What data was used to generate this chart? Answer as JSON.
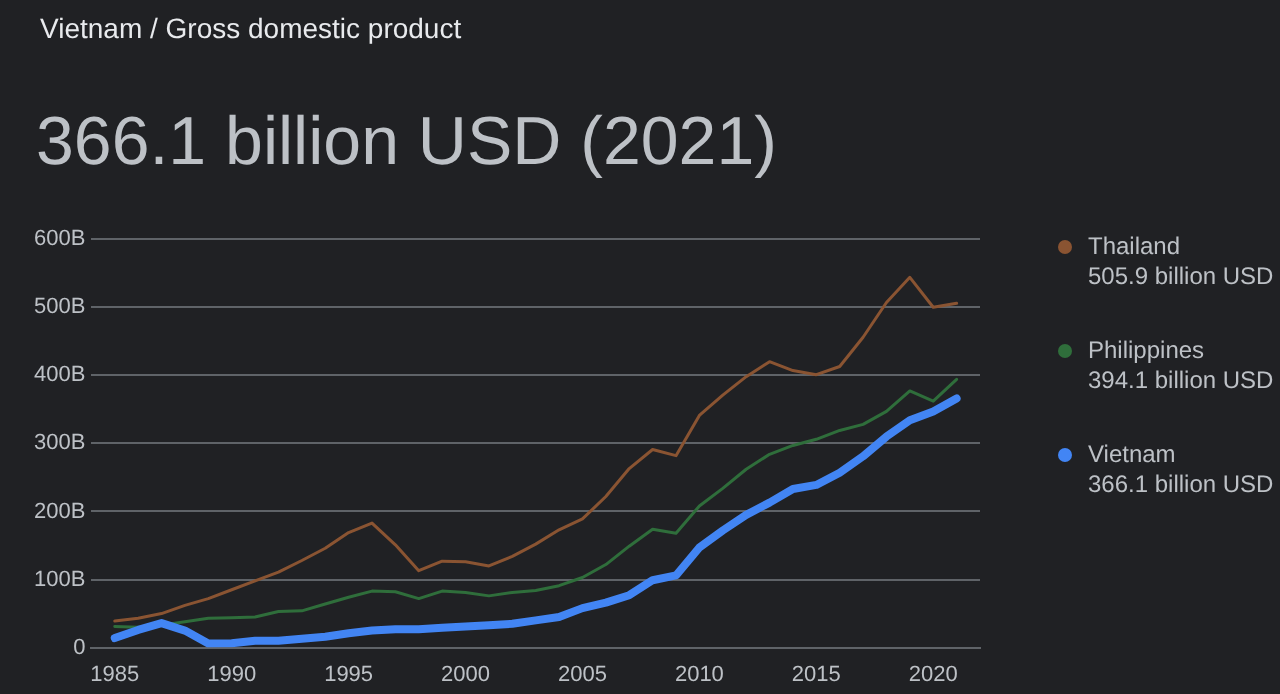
{
  "chart_data": {
    "type": "line",
    "subtitle": "Vietnam / Gross domestic product",
    "title": "366.1 billion USD (2021)",
    "x": [
      1985,
      1986,
      1987,
      1988,
      1989,
      1990,
      1991,
      1992,
      1993,
      1994,
      1995,
      1996,
      1997,
      1998,
      1999,
      2000,
      2001,
      2002,
      2003,
      2004,
      2005,
      2006,
      2007,
      2008,
      2009,
      2010,
      2011,
      2012,
      2013,
      2014,
      2015,
      2016,
      2017,
      2018,
      2019,
      2020,
      2021
    ],
    "series": [
      {
        "name": "Thailand",
        "color": "#8a5432",
        "values": [
          39,
          43,
          50,
          62,
          72,
          85,
          98,
          111,
          128,
          146,
          169,
          183,
          151,
          113,
          127,
          126,
          120,
          134,
          152,
          173,
          189,
          222,
          263,
          291,
          282,
          341,
          371,
          398,
          420,
          407,
          401,
          413,
          456,
          507,
          544,
          500,
          505.9
        ]
      },
      {
        "name": "Philippines",
        "color": "#2f6e3b",
        "values": [
          31,
          30,
          33,
          38,
          43,
          44,
          45,
          53,
          54,
          64,
          74,
          83,
          82,
          72,
          83,
          81,
          76,
          81,
          84,
          91,
          103,
          122,
          149,
          174,
          168,
          208,
          234,
          262,
          284,
          297,
          306,
          319,
          328,
          347,
          377,
          362,
          394.1
        ]
      },
      {
        "name": "Vietnam",
        "color": "#4285f4",
        "values": [
          14,
          26,
          36,
          25,
          6,
          6.5,
          10,
          10,
          13,
          16,
          21,
          25,
          27,
          27,
          29,
          31,
          33,
          35,
          40,
          45,
          58,
          66,
          77,
          99,
          106,
          147,
          172,
          195,
          213,
          233,
          239,
          257,
          281,
          310,
          334,
          347,
          366.1
        ]
      }
    ],
    "annotations": [
      "505.9 billion USD",
      "394.1 billion USD",
      "366.1 billion USD"
    ],
    "xlim": [
      1984,
      2022
    ],
    "xticks": [
      1985,
      1990,
      1995,
      2000,
      2005,
      2010,
      2015,
      2020
    ],
    "ylim": [
      0,
      600
    ],
    "yticks": [
      0,
      {
        "value": 100,
        "label": "100B"
      },
      {
        "value": 200,
        "label": "200B"
      },
      {
        "value": 300,
        "label": "300B"
      },
      {
        "value": 400,
        "label": "400B"
      },
      {
        "value": 500,
        "label": "500B"
      },
      {
        "value": 600,
        "label": "600B"
      }
    ],
    "grid": "y",
    "legend": "right",
    "marker": "none",
    "line_style": "solid"
  }
}
